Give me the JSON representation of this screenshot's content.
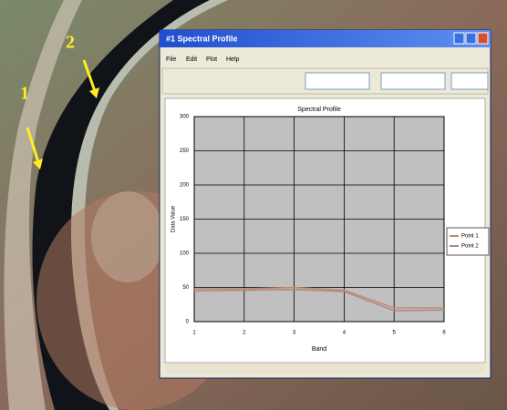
{
  "annotations": [
    "1",
    "2"
  ],
  "window": {
    "title": "#1 Spectral Profile",
    "menu": [
      "File",
      "Edit",
      "Plot",
      "Help"
    ]
  },
  "chart_data": {
    "type": "line",
    "title": "Spectral Profile",
    "xlabel": "Band",
    "ylabel": "Data Value",
    "x": [
      1,
      2,
      3,
      4,
      5,
      6
    ],
    "series": [
      {
        "name": "Point 1",
        "color": "#c08a70",
        "values": [
          48,
          48,
          50,
          46,
          20,
          20
        ]
      },
      {
        "name": "Point 2",
        "color": "#b08878",
        "values": [
          45,
          46,
          47,
          44,
          16,
          17
        ]
      }
    ],
    "xlim": [
      1,
      6
    ],
    "xticks": [
      1,
      2,
      3,
      4,
      5,
      6
    ],
    "ylim": [
      0,
      300
    ],
    "yticks": [
      0,
      50,
      100,
      150,
      200,
      250,
      300
    ],
    "grid": true
  }
}
